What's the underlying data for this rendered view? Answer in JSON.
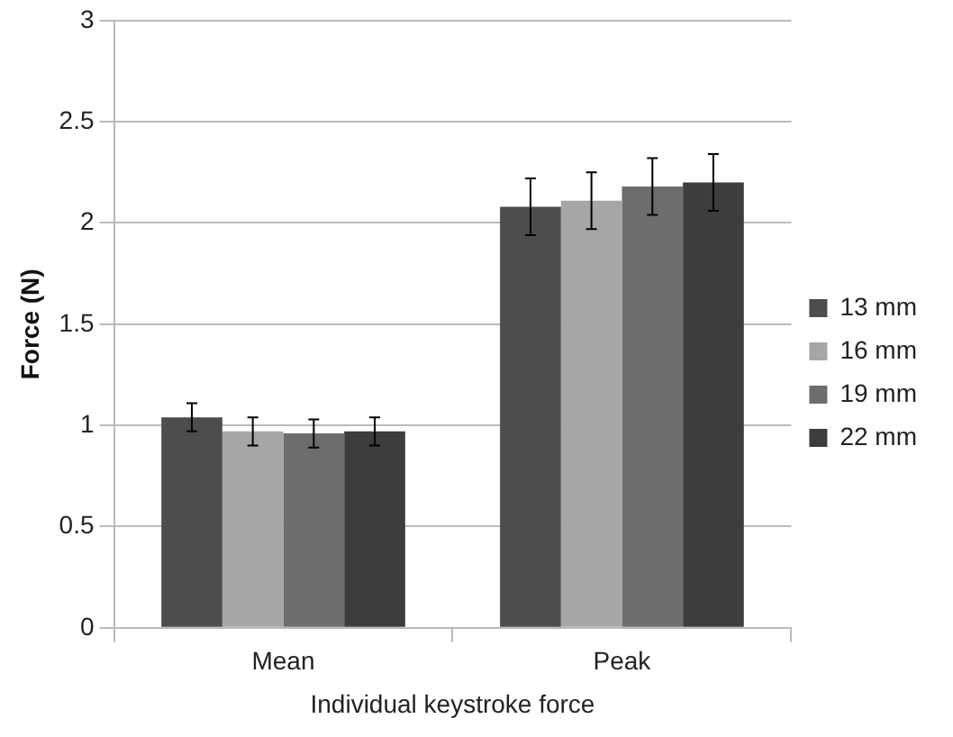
{
  "chart_data": {
    "type": "bar",
    "categories": [
      "Mean",
      "Peak"
    ],
    "xlabel": "Individual keystroke force",
    "ylabel": "Force (N)",
    "ylim": [
      0,
      3
    ],
    "yticks": [
      0,
      0.5,
      1,
      1.5,
      2,
      2.5,
      3
    ],
    "grid": "y",
    "legend": "right",
    "series": [
      {
        "name": "13 mm",
        "color": "#4d4d4d",
        "values": [
          1.04,
          2.08
        ],
        "errors": [
          0.07,
          0.14
        ]
      },
      {
        "name": "16 mm",
        "color": "#a6a6a6",
        "values": [
          0.97,
          2.11
        ],
        "errors": [
          0.07,
          0.14
        ]
      },
      {
        "name": "19 mm",
        "color": "#6d6d6d",
        "values": [
          0.96,
          2.18
        ],
        "errors": [
          0.07,
          0.14
        ]
      },
      {
        "name": "22 mm",
        "color": "#3d3d3d",
        "values": [
          0.97,
          2.2
        ],
        "errors": [
          0.07,
          0.14
        ]
      }
    ]
  }
}
